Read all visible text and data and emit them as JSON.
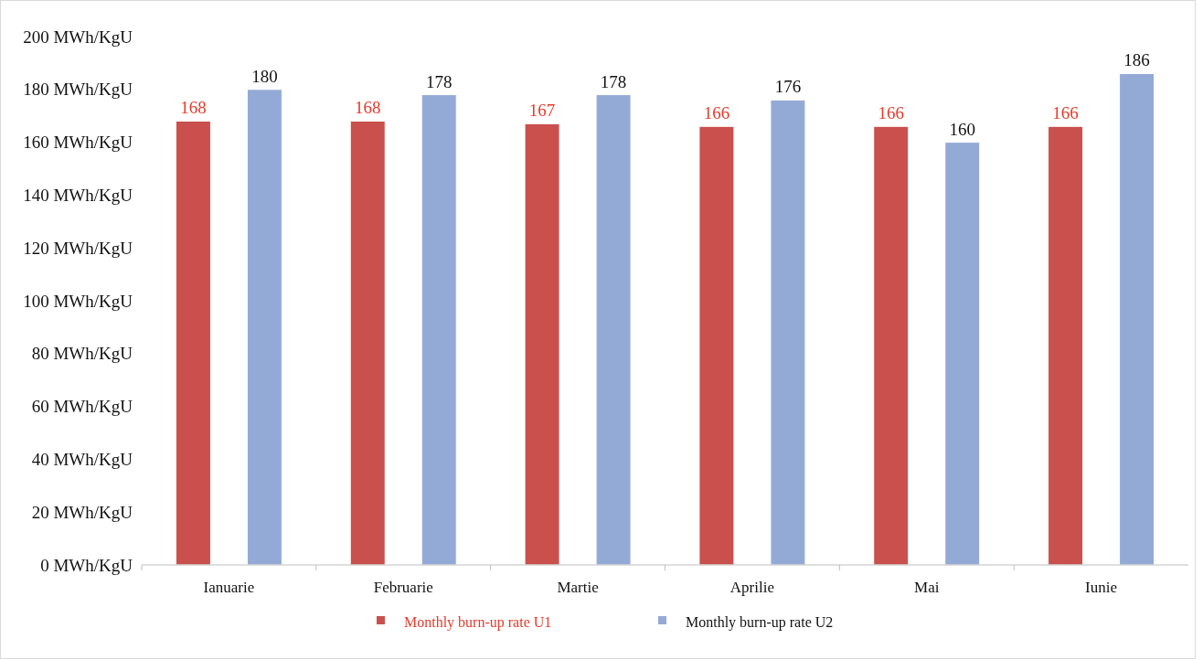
{
  "chart_data": {
    "type": "bar",
    "categories": [
      "Ianuarie",
      "Februarie",
      "Martie",
      "Aprilie",
      "Mai",
      "Iunie"
    ],
    "series": [
      {
        "name": "Monthly burn-up rate U1",
        "color": "#c9504c",
        "values": [
          168,
          168,
          167,
          166,
          166,
          166
        ]
      },
      {
        "name": "Monthly burn-up rate U2",
        "color": "#94aad6",
        "values": [
          180,
          178,
          178,
          176,
          160,
          186
        ]
      }
    ],
    "ylim": [
      0,
      200
    ],
    "yticks": [
      {
        "value": 0,
        "label": "0 MWh/KgU"
      },
      {
        "value": 20,
        "label": "20 MWh/KgU"
      },
      {
        "value": 40,
        "label": "40 MWh/KgU"
      },
      {
        "value": 60,
        "label": "60 MWh/KgU"
      },
      {
        "value": 80,
        "label": "80 MWh/KgU"
      },
      {
        "value": 100,
        "label": "100 MWh/KgU"
      },
      {
        "value": 120,
        "label": "120 MWh/KgU"
      },
      {
        "value": 140,
        "label": "140 MWh/KgU"
      },
      {
        "value": 160,
        "label": "160 MWh/KgU"
      },
      {
        "value": 180,
        "label": "180 MWh/KgU"
      },
      {
        "value": 200,
        "label": "200 MWh/KgU"
      }
    ],
    "data_labels": true,
    "grid": false,
    "legend": "bottom"
  }
}
